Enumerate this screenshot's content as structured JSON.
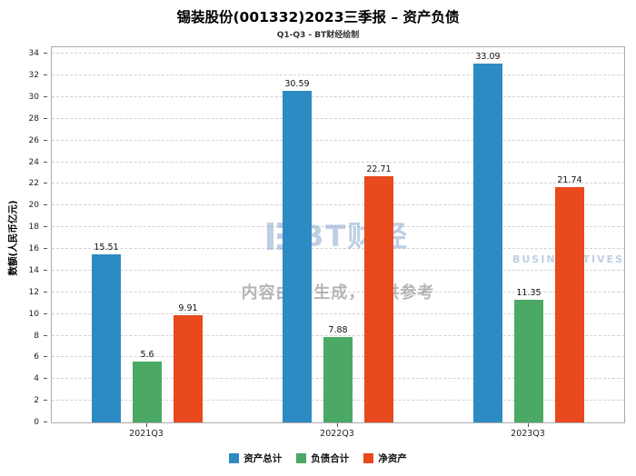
{
  "chart_data": {
    "type": "bar",
    "title": "锡装股份(001332)2023三季报 – 资产负债",
    "subtitle": "Q1-Q3 - BT财经绘制",
    "ylabel": "数额(人民币亿元)",
    "xlabel": "",
    "categories": [
      "2021Q3",
      "2022Q3",
      "2023Q3"
    ],
    "series": [
      {
        "name": "资产总计",
        "color": "#2d8bc4",
        "values": [
          15.51,
          30.59,
          33.09
        ]
      },
      {
        "name": "负债合计",
        "color": "#4ba965",
        "values": [
          5.6,
          7.88,
          11.35
        ]
      },
      {
        "name": "净资产",
        "color": "#e8491d",
        "values": [
          9.91,
          22.71,
          21.74
        ]
      }
    ],
    "ylim": [
      0,
      34
    ],
    "ytick_step": 2,
    "grid": true,
    "legend_position": "bottom"
  },
  "watermark": {
    "logo": "BT财经",
    "logo_sub": "BUSINESSTIVES",
    "disclaimer": "内容由AI生成，仅供参考"
  }
}
